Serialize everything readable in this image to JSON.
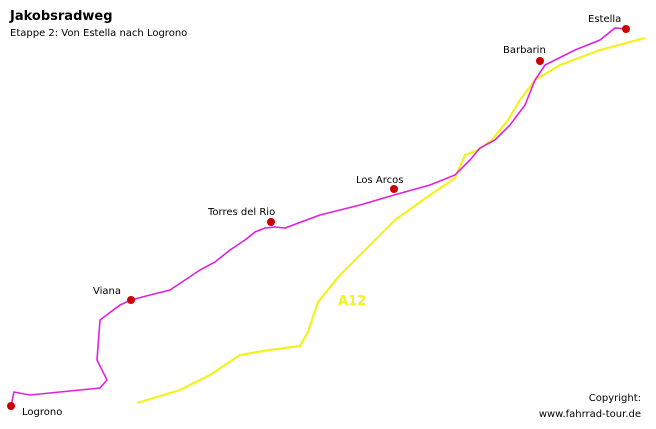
{
  "header": {
    "title": "Jakobsradweg",
    "subtitle": "Etappe 2: Von Estella nach Logrono"
  },
  "places": [
    {
      "label": "Estella"
    },
    {
      "label": "Barbarin"
    },
    {
      "label": "Los Arcos"
    },
    {
      "label": "Torres del Rio"
    },
    {
      "label": "Viana"
    },
    {
      "label": "Logrono"
    }
  ],
  "road": {
    "label": "A12"
  },
  "copyright": [
    "Copyright:",
    "www.fahrrad-tour.de"
  ]
}
